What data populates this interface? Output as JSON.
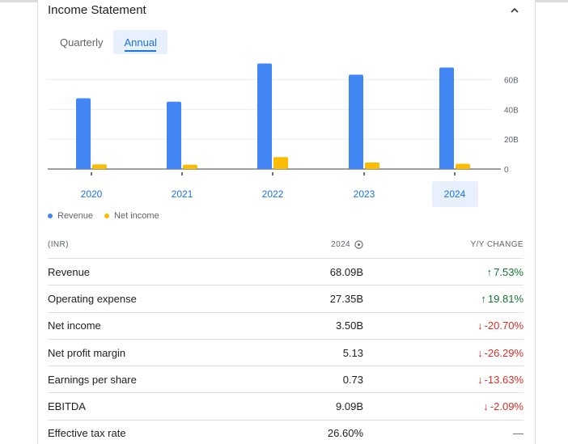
{
  "title": "Income Statement",
  "tabs": [
    {
      "label": "Quarterly",
      "active": false
    },
    {
      "label": "Annual",
      "active": true
    }
  ],
  "colors": {
    "revenue": "#4285f4",
    "net_income": "#fbbc04",
    "accent": "#1a73e8",
    "up": "#137333",
    "down": "#d93025"
  },
  "chart_data": {
    "type": "bar",
    "categories": [
      "2020",
      "2021",
      "2022",
      "2023",
      "2024"
    ],
    "selected_category": "2024",
    "series": [
      {
        "name": "Revenue",
        "values": [
          47.5,
          45.2,
          70.8,
          63.3,
          68.09
        ]
      },
      {
        "name": "Net income",
        "values": [
          3.1,
          2.9,
          8.0,
          4.4,
          3.5
        ]
      }
    ],
    "y_ticks": [
      "0",
      "20B",
      "40B",
      "60B"
    ],
    "ylim": [
      0,
      70
    ],
    "y_axis_position": "right",
    "grid": true,
    "legend_position": "bottom-left"
  },
  "table": {
    "headers": {
      "label": "(INR)",
      "year": "2024",
      "change": "Y/Y CHANGE"
    },
    "rows": [
      {
        "label": "Revenue",
        "value": "68.09B",
        "change": "7.53%",
        "direction": "up"
      },
      {
        "label": "Operating expense",
        "value": "27.35B",
        "change": "19.81%",
        "direction": "up"
      },
      {
        "label": "Net income",
        "value": "3.50B",
        "change": "-20.70%",
        "direction": "down"
      },
      {
        "label": "Net profit margin",
        "value": "5.13",
        "change": "-26.29%",
        "direction": "down"
      },
      {
        "label": "Earnings per share",
        "value": "0.73",
        "change": "-13.63%",
        "direction": "down"
      },
      {
        "label": "EBITDA",
        "value": "9.09B",
        "change": "-2.09%",
        "direction": "down"
      },
      {
        "label": "Effective tax rate",
        "value": "26.60%",
        "change": "—",
        "direction": "flat"
      }
    ]
  }
}
